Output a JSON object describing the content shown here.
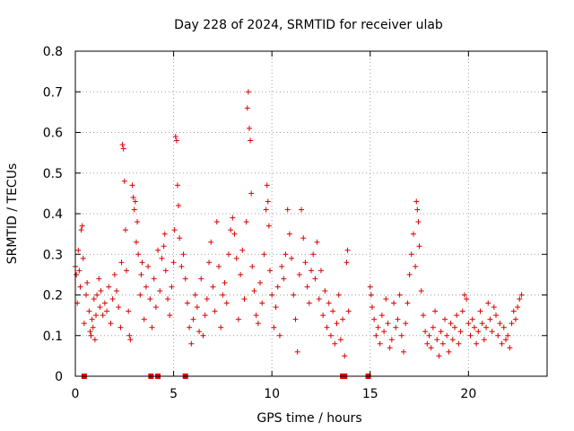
{
  "chart_data": {
    "type": "scatter",
    "title": "Day 228 of 2024, SRMTID for receiver ulab",
    "xlabel": "GPS time / hours",
    "ylabel": "SRMTID / TECUs",
    "xlim": [
      0,
      24
    ],
    "ylim": [
      0,
      0.8
    ],
    "xticks": [
      "0",
      "5",
      "10",
      "15",
      "20"
    ],
    "xtick_values": [
      0,
      5,
      10,
      15,
      20
    ],
    "yticks": [
      "0",
      "0.1",
      "0.2",
      "0.3",
      "0.4",
      "0.5",
      "0.6",
      "0.7",
      "0.8"
    ],
    "ytick_values": [
      0,
      0.1,
      0.2,
      0.3,
      0.4,
      0.5,
      0.6,
      0.7,
      0.8
    ],
    "grid": true,
    "marker": "+",
    "color": "#e00000",
    "series": [
      {
        "name": "SRMTID",
        "points": [
          [
            0.0,
            0.27
          ],
          [
            0.05,
            0.25
          ],
          [
            0.1,
            0.18
          ],
          [
            0.15,
            0.31
          ],
          [
            0.2,
            0.26
          ],
          [
            0.25,
            0.22
          ],
          [
            0.3,
            0.36
          ],
          [
            0.35,
            0.37
          ],
          [
            0.4,
            0.29
          ],
          [
            0.45,
            0.13
          ],
          [
            0.55,
            0.2
          ],
          [
            0.6,
            0.23
          ],
          [
            0.7,
            0.16
          ],
          [
            0.75,
            0.11
          ],
          [
            0.8,
            0.1
          ],
          [
            0.85,
            0.14
          ],
          [
            0.9,
            0.12
          ],
          [
            0.95,
            0.19
          ],
          [
            1.0,
            0.09
          ],
          [
            1.05,
            0.15
          ],
          [
            1.1,
            0.2
          ],
          [
            1.2,
            0.24
          ],
          [
            1.25,
            0.17
          ],
          [
            1.3,
            0.21
          ],
          [
            1.4,
            0.15
          ],
          [
            1.5,
            0.18
          ],
          [
            1.6,
            0.16
          ],
          [
            1.7,
            0.22
          ],
          [
            1.8,
            0.13
          ],
          [
            1.9,
            0.19
          ],
          [
            2.0,
            0.25
          ],
          [
            2.1,
            0.21
          ],
          [
            2.2,
            0.17
          ],
          [
            2.3,
            0.12
          ],
          [
            2.35,
            0.28
          ],
          [
            2.4,
            0.57
          ],
          [
            2.45,
            0.56
          ],
          [
            2.5,
            0.48
          ],
          [
            2.55,
            0.36
          ],
          [
            2.6,
            0.26
          ],
          [
            2.7,
            0.16
          ],
          [
            2.75,
            0.1
          ],
          [
            2.8,
            0.09
          ],
          [
            2.9,
            0.47
          ],
          [
            2.95,
            0.44
          ],
          [
            3.0,
            0.41
          ],
          [
            3.05,
            0.43
          ],
          [
            3.1,
            0.33
          ],
          [
            3.15,
            0.38
          ],
          [
            3.2,
            0.3
          ],
          [
            3.3,
            0.2
          ],
          [
            3.35,
            0.25
          ],
          [
            3.4,
            0.28
          ],
          [
            3.5,
            0.14
          ],
          [
            3.6,
            0.22
          ],
          [
            3.7,
            0.27
          ],
          [
            3.8,
            0.19
          ],
          [
            3.9,
            0.12
          ],
          [
            4.0,
            0.24
          ],
          [
            4.1,
            0.17
          ],
          [
            4.2,
            0.31
          ],
          [
            4.3,
            0.21
          ],
          [
            4.4,
            0.29
          ],
          [
            4.5,
            0.32
          ],
          [
            4.55,
            0.35
          ],
          [
            4.6,
            0.26
          ],
          [
            4.7,
            0.19
          ],
          [
            4.8,
            0.15
          ],
          [
            4.9,
            0.22
          ],
          [
            5.0,
            0.28
          ],
          [
            5.05,
            0.36
          ],
          [
            5.1,
            0.59
          ],
          [
            5.15,
            0.58
          ],
          [
            5.2,
            0.47
          ],
          [
            5.25,
            0.42
          ],
          [
            5.3,
            0.34
          ],
          [
            5.4,
            0.27
          ],
          [
            5.5,
            0.3
          ],
          [
            5.6,
            0.24
          ],
          [
            5.7,
            0.18
          ],
          [
            5.8,
            0.12
          ],
          [
            5.9,
            0.08
          ],
          [
            6.0,
            0.14
          ],
          [
            6.1,
            0.2
          ],
          [
            6.2,
            0.17
          ],
          [
            6.3,
            0.11
          ],
          [
            6.4,
            0.24
          ],
          [
            6.5,
            0.1
          ],
          [
            6.6,
            0.15
          ],
          [
            6.7,
            0.19
          ],
          [
            6.8,
            0.28
          ],
          [
            6.9,
            0.33
          ],
          [
            7.0,
            0.22
          ],
          [
            7.1,
            0.16
          ],
          [
            7.2,
            0.38
          ],
          [
            7.3,
            0.27
          ],
          [
            7.4,
            0.12
          ],
          [
            7.5,
            0.2
          ],
          [
            7.6,
            0.23
          ],
          [
            7.7,
            0.18
          ],
          [
            7.8,
            0.3
          ],
          [
            7.9,
            0.36
          ],
          [
            8.0,
            0.39
          ],
          [
            8.1,
            0.35
          ],
          [
            8.2,
            0.29
          ],
          [
            8.3,
            0.14
          ],
          [
            8.4,
            0.25
          ],
          [
            8.5,
            0.31
          ],
          [
            8.6,
            0.19
          ],
          [
            8.7,
            0.38
          ],
          [
            8.75,
            0.66
          ],
          [
            8.8,
            0.7
          ],
          [
            8.85,
            0.61
          ],
          [
            8.9,
            0.58
          ],
          [
            8.95,
            0.45
          ],
          [
            9.0,
            0.27
          ],
          [
            9.1,
            0.21
          ],
          [
            9.2,
            0.15
          ],
          [
            9.3,
            0.13
          ],
          [
            9.4,
            0.23
          ],
          [
            9.5,
            0.18
          ],
          [
            9.6,
            0.3
          ],
          [
            9.7,
            0.41
          ],
          [
            9.75,
            0.47
          ],
          [
            9.8,
            0.43
          ],
          [
            9.85,
            0.37
          ],
          [
            9.9,
            0.26
          ],
          [
            10.0,
            0.2
          ],
          [
            10.1,
            0.12
          ],
          [
            10.2,
            0.17
          ],
          [
            10.3,
            0.22
          ],
          [
            10.4,
            0.1
          ],
          [
            10.5,
            0.27
          ],
          [
            10.6,
            0.24
          ],
          [
            10.7,
            0.3
          ],
          [
            10.8,
            0.41
          ],
          [
            10.9,
            0.35
          ],
          [
            11.0,
            0.29
          ],
          [
            11.1,
            0.2
          ],
          [
            11.2,
            0.14
          ],
          [
            11.3,
            0.06
          ],
          [
            11.4,
            0.25
          ],
          [
            11.5,
            0.41
          ],
          [
            11.6,
            0.34
          ],
          [
            11.7,
            0.28
          ],
          [
            11.8,
            0.22
          ],
          [
            11.9,
            0.18
          ],
          [
            12.0,
            0.26
          ],
          [
            12.1,
            0.3
          ],
          [
            12.2,
            0.24
          ],
          [
            12.3,
            0.33
          ],
          [
            12.4,
            0.19
          ],
          [
            12.5,
            0.26
          ],
          [
            12.6,
            0.15
          ],
          [
            12.7,
            0.21
          ],
          [
            12.8,
            0.12
          ],
          [
            12.9,
            0.18
          ],
          [
            13.0,
            0.1
          ],
          [
            13.1,
            0.16
          ],
          [
            13.2,
            0.08
          ],
          [
            13.3,
            0.13
          ],
          [
            13.4,
            0.2
          ],
          [
            13.5,
            0.09
          ],
          [
            13.6,
            0.14
          ],
          [
            13.7,
            0.05
          ],
          [
            13.8,
            0.28
          ],
          [
            13.85,
            0.31
          ],
          [
            13.9,
            0.16
          ],
          [
            15.0,
            0.22
          ],
          [
            15.05,
            0.2
          ],
          [
            15.1,
            0.17
          ],
          [
            15.2,
            0.14
          ],
          [
            15.3,
            0.1
          ],
          [
            15.4,
            0.12
          ],
          [
            15.5,
            0.08
          ],
          [
            15.6,
            0.15
          ],
          [
            15.7,
            0.11
          ],
          [
            15.8,
            0.19
          ],
          [
            15.9,
            0.13
          ],
          [
            16.0,
            0.07
          ],
          [
            16.1,
            0.09
          ],
          [
            16.2,
            0.18
          ],
          [
            16.3,
            0.12
          ],
          [
            16.4,
            0.14
          ],
          [
            16.5,
            0.2
          ],
          [
            16.6,
            0.1
          ],
          [
            16.7,
            0.06
          ],
          [
            16.8,
            0.13
          ],
          [
            16.9,
            0.18
          ],
          [
            17.0,
            0.25
          ],
          [
            17.1,
            0.3
          ],
          [
            17.2,
            0.35
          ],
          [
            17.3,
            0.27
          ],
          [
            17.35,
            0.43
          ],
          [
            17.4,
            0.41
          ],
          [
            17.45,
            0.38
          ],
          [
            17.5,
            0.32
          ],
          [
            17.6,
            0.21
          ],
          [
            17.7,
            0.15
          ],
          [
            17.8,
            0.11
          ],
          [
            17.9,
            0.08
          ],
          [
            18.0,
            0.1
          ],
          [
            18.1,
            0.07
          ],
          [
            18.2,
            0.12
          ],
          [
            18.3,
            0.16
          ],
          [
            18.4,
            0.09
          ],
          [
            18.5,
            0.05
          ],
          [
            18.6,
            0.11
          ],
          [
            18.7,
            0.08
          ],
          [
            18.8,
            0.14
          ],
          [
            18.9,
            0.1
          ],
          [
            19.0,
            0.06
          ],
          [
            19.1,
            0.13
          ],
          [
            19.2,
            0.09
          ],
          [
            19.3,
            0.12
          ],
          [
            19.4,
            0.15
          ],
          [
            19.5,
            0.08
          ],
          [
            19.6,
            0.11
          ],
          [
            19.7,
            0.16
          ],
          [
            19.8,
            0.2
          ],
          [
            19.9,
            0.19
          ],
          [
            20.0,
            0.13
          ],
          [
            20.1,
            0.1
          ],
          [
            20.2,
            0.14
          ],
          [
            20.3,
            0.12
          ],
          [
            20.4,
            0.08
          ],
          [
            20.5,
            0.11
          ],
          [
            20.6,
            0.16
          ],
          [
            20.7,
            0.13
          ],
          [
            20.8,
            0.09
          ],
          [
            20.9,
            0.12
          ],
          [
            21.0,
            0.18
          ],
          [
            21.1,
            0.14
          ],
          [
            21.2,
            0.11
          ],
          [
            21.3,
            0.17
          ],
          [
            21.4,
            0.15
          ],
          [
            21.5,
            0.1
          ],
          [
            21.6,
            0.13
          ],
          [
            21.7,
            0.08
          ],
          [
            21.8,
            0.12
          ],
          [
            21.9,
            0.09
          ],
          [
            22.0,
            0.1
          ],
          [
            22.1,
            0.07
          ],
          [
            22.2,
            0.13
          ],
          [
            22.3,
            0.16
          ],
          [
            22.4,
            0.14
          ],
          [
            22.5,
            0.17
          ],
          [
            22.6,
            0.19
          ],
          [
            22.7,
            0.2
          ]
        ]
      }
    ],
    "zero_markers_x": [
      0.45,
      3.85,
      4.2,
      5.6,
      13.6,
      13.7,
      14.9
    ]
  }
}
